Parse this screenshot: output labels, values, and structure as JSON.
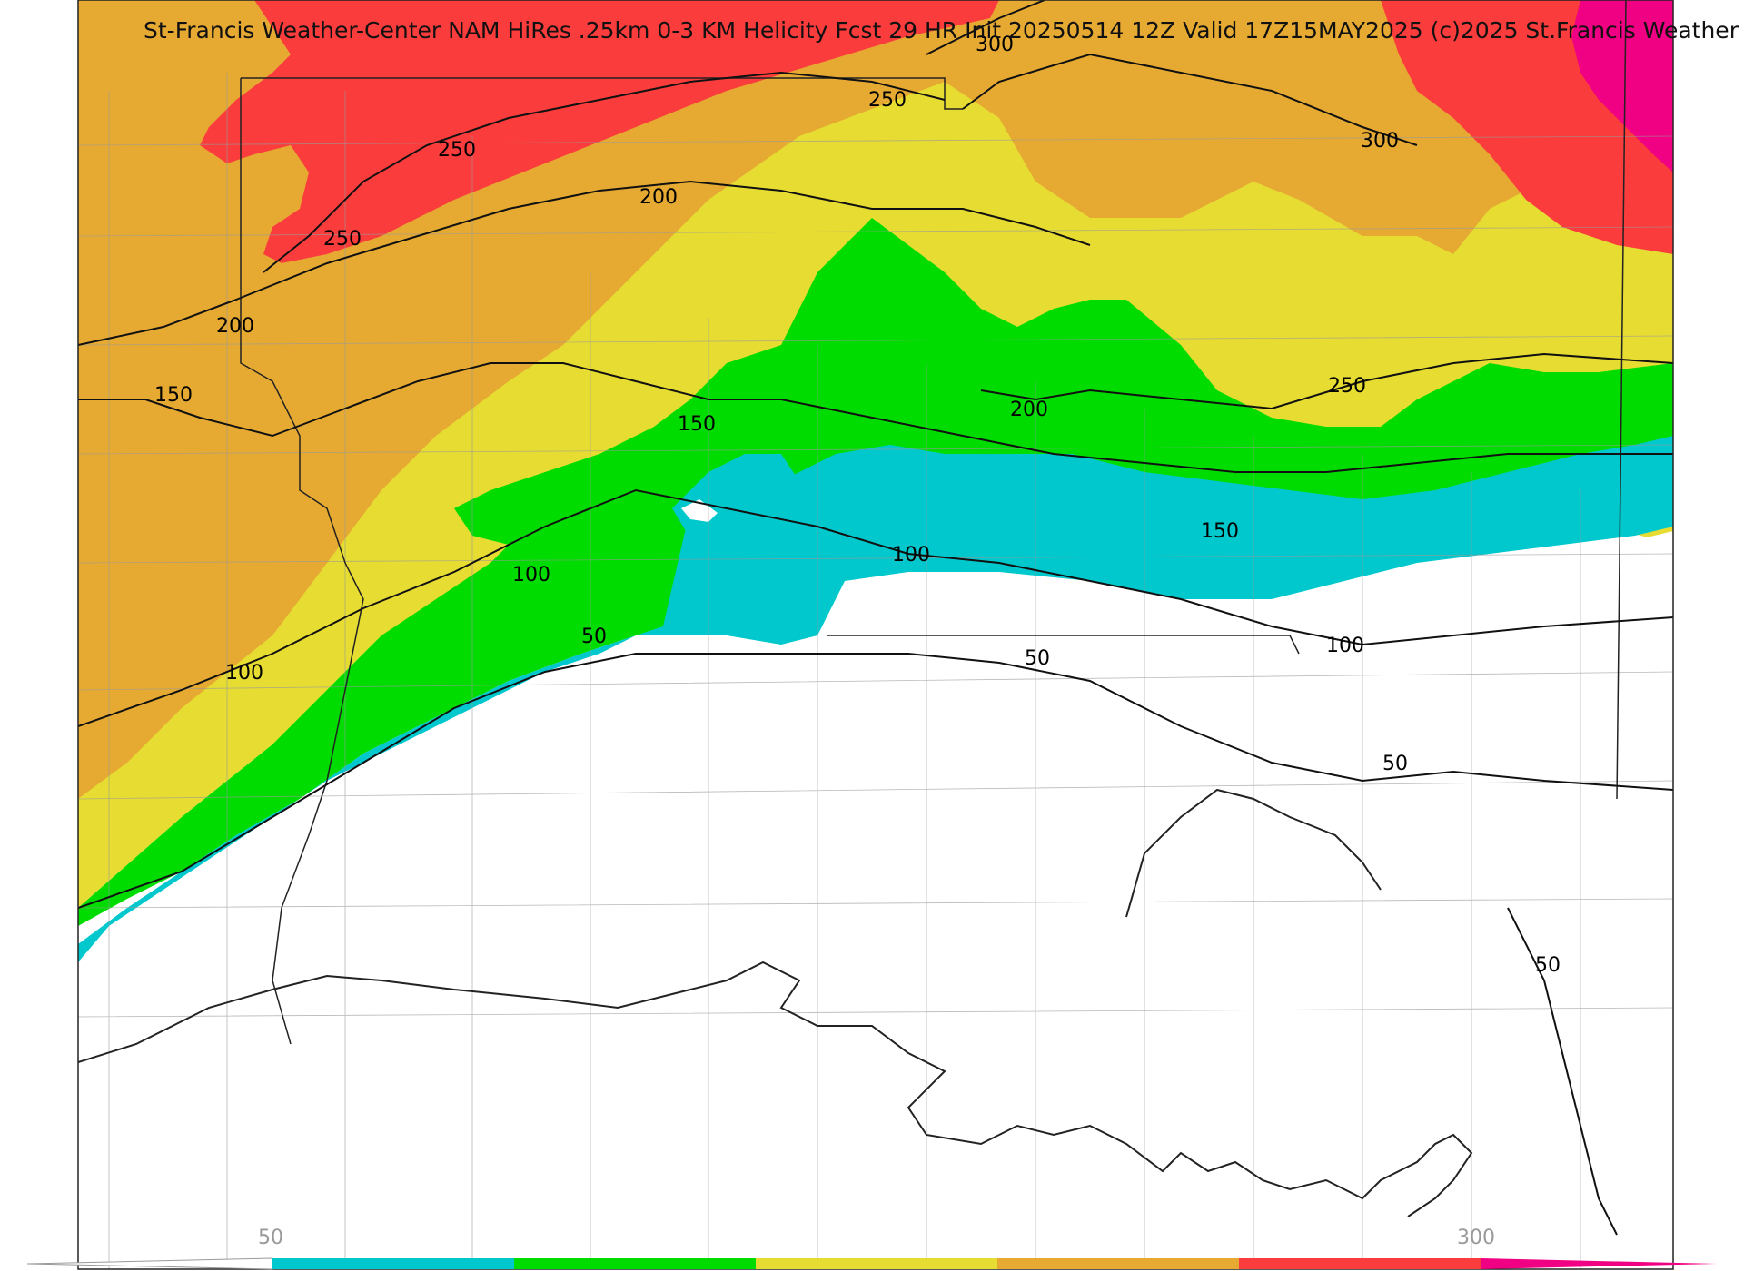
{
  "title": "St-Francis Weather-Center NAM HiRes .25km 0-3 KM Helicity Fcst 29 HR Init 20250514 12Z  Valid 17Z15MAY2025    (c)2025 St.Francis Weather",
  "colorbar": {
    "min_label": "50",
    "max_label": "300",
    "bins": [
      {
        "range": "50-100",
        "color": "#00c8cc"
      },
      {
        "range": "100-150",
        "color": "#00dc00"
      },
      {
        "range": "150-200",
        "color": "#e6dc32"
      },
      {
        "range": "200-250",
        "color": "#e6aa32"
      },
      {
        "range": "250-300",
        "color": "#fa3c3c"
      },
      {
        "range": ">300",
        "color": "#f00082"
      }
    ]
  },
  "contour_labels": [
    {
      "text": "300"
    },
    {
      "text": "250"
    },
    {
      "text": "250"
    },
    {
      "text": "250"
    },
    {
      "text": "200"
    },
    {
      "text": "200"
    },
    {
      "text": "150"
    },
    {
      "text": "150"
    },
    {
      "text": "200"
    },
    {
      "text": "300"
    },
    {
      "text": "250"
    },
    {
      "text": "150"
    },
    {
      "text": "100"
    },
    {
      "text": "100"
    },
    {
      "text": "100"
    },
    {
      "text": "50"
    },
    {
      "text": "50"
    },
    {
      "text": "100"
    },
    {
      "text": "50"
    },
    {
      "text": "50"
    }
  ]
}
